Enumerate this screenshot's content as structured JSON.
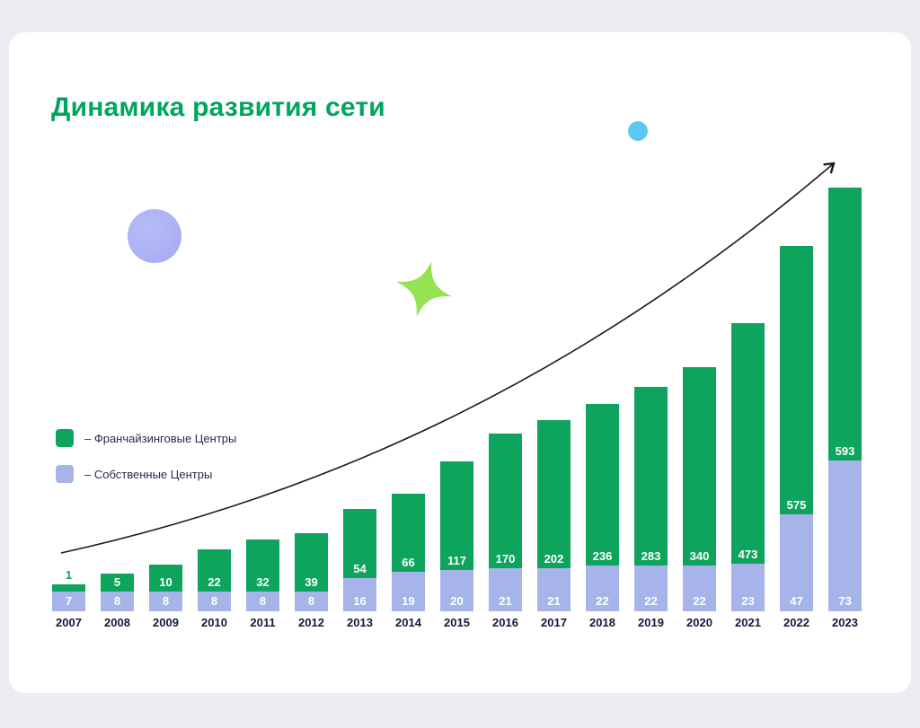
{
  "header": {
    "title": "Динамика развития сети"
  },
  "legend": {
    "items": [
      {
        "label": "– Франчайзинговые Центры",
        "color": "#0FA45E"
      },
      {
        "label": "– Собственные Центры",
        "color": "#A6B4EA"
      }
    ],
    "position": "left-middle"
  },
  "chart_data": {
    "type": "bar",
    "stacked": true,
    "title": "Динамика развития сети",
    "categories": [
      "2007",
      "2008",
      "2009",
      "2010",
      "2011",
      "2012",
      "2013",
      "2014",
      "2015",
      "2016",
      "2017",
      "2018",
      "2019",
      "2020",
      "2021",
      "2022",
      "2023"
    ],
    "series": [
      {
        "name": "Франчайзинговые Центры",
        "color": "#0FA45E",
        "values": [
          1,
          5,
          10,
          22,
          32,
          39,
          54,
          66,
          117,
          170,
          202,
          236,
          283,
          340,
          473,
          575,
          593
        ]
      },
      {
        "name": "Собственные Центры",
        "color": "#A6B4EA",
        "values": [
          7,
          8,
          8,
          8,
          8,
          8,
          16,
          19,
          20,
          21,
          21,
          22,
          22,
          22,
          23,
          47,
          73
        ]
      }
    ],
    "xlabel": "",
    "ylabel": "",
    "value_axis_visible": false,
    "grid": false,
    "ylim": [
      0,
      666
    ],
    "legend_position": "left",
    "annotations": [
      "upward-trend-arrow"
    ]
  },
  "colors": {
    "title": "#00A55E",
    "franchise": "#0FA45E",
    "own": "#A6B4EA",
    "background": "#EDEDF1",
    "card": "#FFFFFF",
    "arrow": "#1A1A1A",
    "year_text": "#16183A",
    "decor_star": "#95E253",
    "decor_circle": "#A9AFF3",
    "decor_dot": "#5BC8F3"
  }
}
